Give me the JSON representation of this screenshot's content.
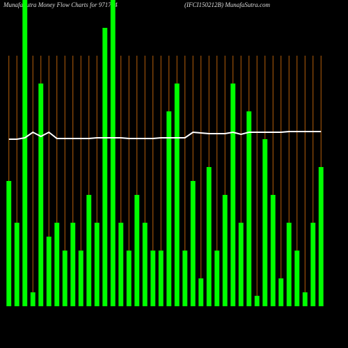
{
  "chart_data": {
    "type": "bar",
    "title": "MunafaSutra  Money Flow  Charts for 971714",
    "subtitle": "(IFCI150212B) MunafaSutra.com",
    "categories": [
      null,
      null,
      null,
      null,
      null,
      null,
      null,
      null,
      null,
      null,
      null,
      null,
      null,
      null,
      null,
      null,
      null,
      null,
      null,
      null,
      null,
      null,
      null,
      null,
      null,
      null,
      null,
      null,
      null,
      null,
      null,
      null,
      null,
      null,
      null,
      null,
      null,
      null,
      null,
      null
    ],
    "ylim": [
      0,
      440
    ],
    "series": [
      {
        "type": "bar",
        "color": "#00ff00",
        "values": [
          180,
          120,
          440,
          20,
          320,
          100,
          120,
          80,
          120,
          80,
          160,
          120,
          400,
          440,
          120,
          80,
          160,
          120,
          80,
          80,
          280,
          320,
          80,
          180,
          40,
          200,
          80,
          160,
          320,
          120,
          280,
          15,
          240,
          160,
          40,
          120,
          80,
          20,
          120,
          200
        ]
      },
      {
        "type": "line",
        "color": "#ffffff",
        "values": [
          240,
          240,
          242,
          250,
          244,
          250,
          241,
          241,
          241,
          241,
          241,
          242,
          242,
          242,
          242,
          241,
          241,
          241,
          241,
          242,
          242,
          242,
          242,
          250,
          249,
          248,
          248,
          248,
          250,
          247,
          250,
          250,
          250,
          250,
          250,
          251,
          251,
          251,
          251,
          251
        ]
      }
    ],
    "category_line_color": "#b8600a"
  }
}
